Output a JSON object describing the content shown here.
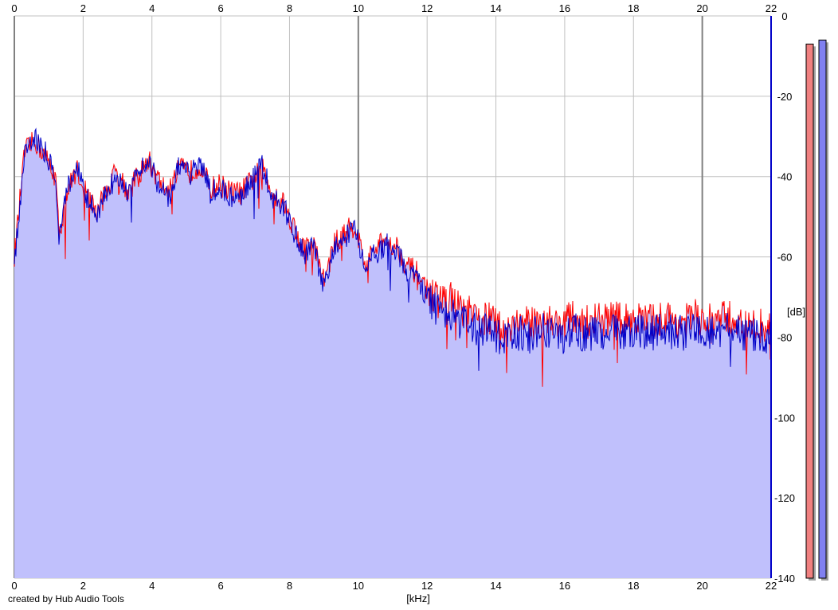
{
  "credit": "created by Hub Audio Tools",
  "colors": {
    "fill": "#c0c0fc",
    "left_channel": "#ff0000",
    "right_channel": "#0000c8",
    "grid": "#c0c0c0",
    "grid_major": "#808080",
    "meter_left": "#f08080",
    "meter_right": "#8080f0"
  },
  "chart_data": {
    "type": "area",
    "xlabel": "[kHz]",
    "ylabel": "[dB]",
    "xlim": [
      0,
      22
    ],
    "ylim": [
      -140,
      0
    ],
    "x_ticks": [
      0,
      2,
      4,
      6,
      8,
      10,
      12,
      14,
      16,
      18,
      20,
      22
    ],
    "y_ticks": [
      0,
      -20,
      -40,
      -60,
      -80,
      -100,
      -120,
      -140
    ],
    "grid": true,
    "x_major_ticks": [
      0,
      10,
      20
    ],
    "series": [
      {
        "color": "#ff0000",
        "x": [
          0,
          0.3,
          0.6,
          0.9,
          1.2,
          1.3,
          1.5,
          1.8,
          2.1,
          2.4,
          2.7,
          3.0,
          3.3,
          3.6,
          3.9,
          4.2,
          4.5,
          4.8,
          5.1,
          5.4,
          5.7,
          6.0,
          6.3,
          6.6,
          6.9,
          7.2,
          7.5,
          7.8,
          8.1,
          8.4,
          8.7,
          9.0,
          9.3,
          9.6,
          9.9,
          10.2,
          10.5,
          10.8,
          11.1,
          11.4,
          11.7,
          12.0,
          12.3,
          12.6,
          12.9,
          13.2,
          13.5,
          13.8,
          14.1,
          14.4,
          14.7,
          15.0,
          15.3,
          15.6,
          15.9,
          16.2,
          16.5,
          16.8,
          17.1,
          17.4,
          17.7,
          18.0,
          18.3,
          18.6,
          18.9,
          19.2,
          19.5,
          19.8,
          20.1,
          20.4,
          20.7,
          21.0,
          21.3,
          21.6,
          22.0
        ],
        "y": [
          -60,
          -34,
          -31,
          -35,
          -40,
          -55,
          -45,
          -38,
          -44,
          -49,
          -43,
          -38,
          -44,
          -40,
          -36,
          -41,
          -44,
          -38,
          -39,
          -37,
          -43,
          -42,
          -44,
          -44,
          -41,
          -38,
          -44,
          -46,
          -52,
          -58,
          -57,
          -66,
          -57,
          -54,
          -52,
          -62,
          -58,
          -56,
          -57,
          -62,
          -64,
          -68,
          -71,
          -70,
          -72,
          -74,
          -76,
          -75,
          -78,
          -77,
          -76,
          -77,
          -75,
          -76,
          -77,
          -75,
          -76,
          -76,
          -76,
          -75,
          -76,
          -75,
          -76,
          -76,
          -75,
          -76,
          -76,
          -75,
          -76,
          -76,
          -75,
          -76,
          -78,
          -77,
          -78
        ]
      },
      {
        "color": "#0000c8",
        "x": [
          0,
          0.3,
          0.6,
          0.9,
          1.2,
          1.3,
          1.5,
          1.8,
          2.1,
          2.4,
          2.7,
          3.0,
          3.3,
          3.6,
          3.9,
          4.2,
          4.5,
          4.8,
          5.1,
          5.4,
          5.7,
          6.0,
          6.3,
          6.6,
          6.9,
          7.2,
          7.5,
          7.8,
          8.1,
          8.4,
          8.7,
          9.0,
          9.3,
          9.6,
          9.9,
          10.2,
          10.5,
          10.8,
          11.1,
          11.4,
          11.7,
          12.0,
          12.3,
          12.6,
          12.9,
          13.2,
          13.5,
          13.8,
          14.1,
          14.4,
          14.7,
          15.0,
          15.3,
          15.6,
          15.9,
          16.2,
          16.5,
          16.8,
          17.1,
          17.4,
          17.7,
          18.0,
          18.3,
          18.6,
          18.9,
          19.2,
          19.5,
          19.8,
          20.1,
          20.4,
          20.7,
          21.0,
          21.3,
          21.6,
          22.0
        ],
        "y": [
          -62,
          -33,
          -30,
          -34,
          -39,
          -56,
          -44,
          -37,
          -45,
          -50,
          -44,
          -39,
          -43,
          -39,
          -35,
          -42,
          -45,
          -37,
          -40,
          -36,
          -44,
          -43,
          -45,
          -45,
          -40,
          -37,
          -45,
          -47,
          -53,
          -59,
          -58,
          -68,
          -58,
          -55,
          -53,
          -63,
          -59,
          -57,
          -58,
          -63,
          -65,
          -70,
          -74,
          -73,
          -76,
          -77,
          -79,
          -78,
          -80,
          -79,
          -79,
          -80,
          -78,
          -79,
          -80,
          -78,
          -79,
          -79,
          -79,
          -78,
          -79,
          -78,
          -79,
          -79,
          -78,
          -79,
          -79,
          -78,
          -79,
          -79,
          -78,
          -79,
          -80,
          -79,
          -80
        ]
      }
    ],
    "meter_levels_db": [
      -7,
      -6
    ]
  }
}
